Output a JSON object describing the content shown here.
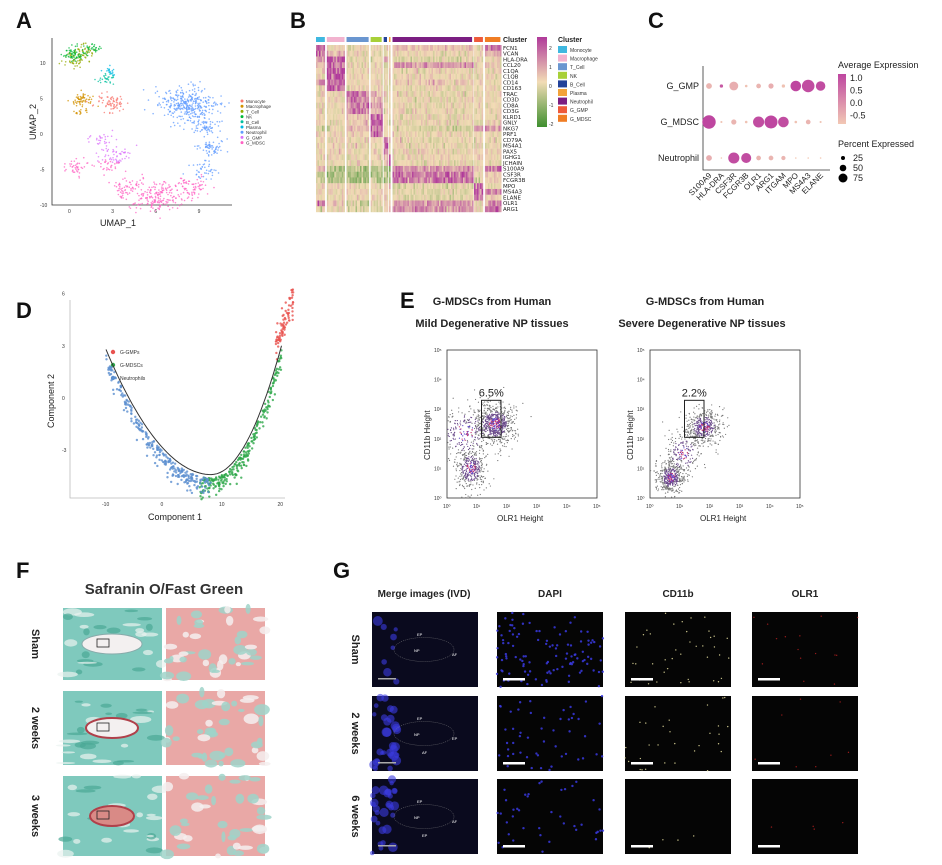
{
  "panels": {
    "a": "A",
    "b": "B",
    "c": "C",
    "d": "D",
    "e": "E",
    "f": "F",
    "g": "G"
  },
  "chart_data": [
    {
      "panel": "A",
      "type": "scatter",
      "xlabel": "UMAP_1",
      "ylabel": "UMAP_2",
      "xticks": [
        0,
        3,
        6,
        9
      ],
      "yticks": [
        -10,
        -5,
        0,
        5,
        10
      ],
      "xlim": [
        -1,
        11
      ],
      "ylim": [
        -10.5,
        13
      ],
      "legend": [
        "Monocyte",
        "Macrophage",
        "T_Cell",
        "NK",
        "B_Cell",
        "Plasma",
        "Neutrophil",
        "G_GMP",
        "G_MDSC"
      ],
      "legend_position": "right",
      "clusters": [
        {
          "name": "Monocyte",
          "color": "#F8766D",
          "blobs": [
            [
              3,
              4,
              0.5,
              50
            ],
            [
              2.2,
              4.5,
              0.5,
              20
            ]
          ]
        },
        {
          "name": "Macrophage",
          "color": "#D39200",
          "blobs": [
            [
              0.8,
              4.9,
              0.4,
              60
            ],
            [
              0.8,
              3.2,
              0.3,
              15
            ]
          ]
        },
        {
          "name": "T_Cell",
          "color": "#93AA00",
          "blobs": [
            [
              0.3,
              10.5,
              0.4,
              60
            ],
            [
              1,
              11.8,
              0.4,
              40
            ]
          ]
        },
        {
          "name": "NK",
          "color": "#00BA38",
          "blobs": [
            [
              0.2,
              11.3,
              0.35,
              60
            ],
            [
              1.5,
              12,
              0.3,
              30
            ]
          ]
        },
        {
          "name": "B_Cell",
          "color": "#00C19F",
          "blobs": [
            [
              2.6,
              7.9,
              0.3,
              30
            ]
          ]
        },
        {
          "name": "Plasma",
          "color": "#00B9E3",
          "blobs": [
            [
              2.8,
              8.7,
              0.25,
              20
            ]
          ]
        },
        {
          "name": "Neutrophil",
          "color": "#619CFF",
          "blobs": [
            [
              8.2,
              4,
              1,
              350
            ],
            [
              9.5,
              1,
              0.5,
              60
            ],
            [
              9.8,
              -2,
              0.5,
              60
            ],
            [
              9.3,
              -5,
              0.5,
              40
            ]
          ]
        },
        {
          "name": "G_GMP",
          "color": "#DB72FB",
          "blobs": [
            [
              3,
              -3,
              0.6,
              50
            ],
            [
              2.2,
              -1,
              0.6,
              30
            ]
          ]
        },
        {
          "name": "G_MDSC",
          "color": "#FF61C3",
          "blobs": [
            [
              6,
              -8.8,
              0.9,
              180
            ],
            [
              4,
              -7.5,
              0.6,
              60
            ],
            [
              8.5,
              -7.5,
              0.6,
              70
            ],
            [
              0.4,
              -4.5,
              0.4,
              40
            ],
            [
              2.7,
              -4.5,
              0.4,
              30
            ]
          ]
        }
      ]
    },
    {
      "panel": "B",
      "type": "heatmap",
      "legend_title": "Cluster",
      "colorbar_ticks": [
        2,
        1,
        0,
        -1,
        -2
      ],
      "clusters": [
        "Monocyte",
        "Macrophage",
        "T_Cell",
        "NK",
        "B_Cell",
        "Plasma",
        "Neutrophil",
        "G_GMP",
        "G_MDSC"
      ],
      "cluster_colors": [
        "#3FB8E0",
        "#F2B3CF",
        "#6A96D0",
        "#A8D038",
        "#23429A",
        "#F2A23A",
        "#7B1E82",
        "#EE5A3A",
        "#F07D24"
      ],
      "cluster_cell_share": [
        8,
        16,
        20,
        10,
        3,
        1,
        72,
        8,
        14
      ],
      "genes": [
        "FCN1",
        "VCAN",
        "HLA-DRA",
        "CCL20",
        "C1QA",
        "C1QB",
        "CD14",
        "CD163",
        "TRAC",
        "CD3D",
        "CD8A",
        "CD3G",
        "KLRD1",
        "GNLY",
        "NKG7",
        "PRF1",
        "CD79A",
        "MS4A1",
        "PAX5",
        "IGHG1",
        "JCHAIN",
        "S100A9",
        "CSF3R",
        "FCGR3B",
        "MPO",
        "MS4A3",
        "ELANE",
        "OLR1",
        "ARG1"
      ],
      "z": [
        [
          1.5,
          0,
          0,
          0,
          0,
          0,
          0.3,
          0,
          1.2
        ],
        [
          1.5,
          0.5,
          0,
          0,
          0,
          0,
          0,
          0,
          0.5
        ],
        [
          1,
          1.8,
          0,
          0,
          1.5,
          0,
          -0.3,
          0,
          0
        ],
        [
          0.5,
          1.5,
          0,
          0,
          0,
          0,
          1,
          0,
          0.3
        ],
        [
          0,
          2,
          0,
          0,
          0,
          0,
          0,
          0,
          0
        ],
        [
          0,
          2,
          0,
          0,
          0,
          0,
          0,
          0,
          0
        ],
        [
          1,
          1.8,
          0,
          0,
          0,
          0,
          0.2,
          0,
          0
        ],
        [
          0,
          1.8,
          0,
          0,
          0,
          0,
          0,
          0,
          0
        ],
        [
          0,
          0,
          1.5,
          0.5,
          0,
          0,
          0,
          0,
          0
        ],
        [
          0,
          0,
          1.5,
          0.5,
          0,
          0,
          0,
          0,
          0
        ],
        [
          0,
          0,
          1.2,
          0.8,
          0,
          0,
          0,
          0,
          0
        ],
        [
          0,
          0,
          1.2,
          0.5,
          0,
          0,
          0,
          0,
          0
        ],
        [
          0,
          0,
          0.3,
          1.8,
          0,
          0,
          0,
          0,
          0
        ],
        [
          0,
          0,
          0.3,
          1.8,
          0,
          0,
          0,
          0,
          0
        ],
        [
          -0.3,
          -0.3,
          0.3,
          1.5,
          0,
          0,
          -0.3,
          1,
          1
        ],
        [
          0,
          0,
          0.2,
          1.5,
          0,
          0,
          0,
          0,
          0
        ],
        [
          0,
          0,
          0,
          0,
          2,
          0.5,
          0,
          0,
          0
        ],
        [
          0,
          0,
          0,
          0,
          2,
          0,
          0,
          0,
          0
        ],
        [
          0,
          0,
          0,
          0,
          1.8,
          0,
          0,
          0,
          0
        ],
        [
          0,
          0,
          0,
          0,
          0.5,
          2,
          0,
          0,
          0
        ],
        [
          0,
          0,
          0,
          0,
          0.5,
          2,
          0,
          0,
          0
        ],
        [
          0.5,
          -0.8,
          -0.8,
          -0.8,
          -0.8,
          -0.8,
          1,
          0.3,
          1.5
        ],
        [
          -0.3,
          -0.8,
          -0.8,
          -0.8,
          -0.8,
          -0.8,
          1.5,
          0,
          0.3
        ],
        [
          -0.3,
          -0.8,
          -0.8,
          -0.8,
          -0.8,
          -0.8,
          1.5,
          0,
          0
        ],
        [
          0,
          0,
          0,
          0,
          0,
          0,
          -0.2,
          2,
          0
        ],
        [
          0,
          0,
          0,
          0,
          0,
          0,
          -0.2,
          2,
          1
        ],
        [
          0,
          0,
          0,
          0,
          0,
          0,
          -0.2,
          1.5,
          0
        ],
        [
          1.2,
          0.3,
          -0.3,
          -0.3,
          0,
          0,
          1,
          0,
          1.5
        ],
        [
          0,
          0,
          -0.3,
          -0.3,
          0,
          0,
          1,
          0.3,
          1.5
        ]
      ]
    },
    {
      "panel": "C",
      "type": "scatter",
      "subtype": "dotplot",
      "groups": [
        "G_GMP",
        "G_MDSC",
        "Neutrophil"
      ],
      "genes": [
        "S100A9",
        "HLA-DRA",
        "CSF3R",
        "FCGR3B",
        "OLR1",
        "ARG1",
        "ITGAM",
        "MPO",
        "MS4A3",
        "ELANE"
      ],
      "avg_expression": [
        [
          -0.6,
          0.8,
          -0.5,
          -0.8,
          -0.6,
          -0.5,
          -0.8,
          1.1,
          1.0,
          1.0
        ],
        [
          1.1,
          -0.8,
          -0.6,
          -0.8,
          1.0,
          1.1,
          1.0,
          -0.8,
          -0.6,
          -0.8
        ],
        [
          -0.5,
          -0.9,
          1.0,
          1.0,
          -0.6,
          -0.6,
          -0.6,
          -0.9,
          -0.9,
          -0.9
        ]
      ],
      "pct_expressed": [
        [
          15,
          5,
          35,
          3,
          10,
          12,
          5,
          50,
          70,
          40
        ],
        [
          80,
          2,
          12,
          3,
          55,
          75,
          50,
          3,
          10,
          2
        ],
        [
          15,
          1,
          55,
          45,
          10,
          10,
          8,
          1,
          1,
          1
        ]
      ],
      "color_legend": {
        "title": "Average Expression",
        "ticks": [
          "1.0",
          "0.5",
          "0.0",
          "-0.5"
        ]
      },
      "size_legend": {
        "title": "Percent Expressed",
        "ticks": [
          "25",
          "50",
          "75"
        ]
      }
    },
    {
      "panel": "D",
      "type": "scatter",
      "subtype": "trajectory",
      "xlabel": "Component 1",
      "ylabel": "Component 2",
      "xticks": [
        -10,
        0,
        10,
        20
      ],
      "yticks": [
        -3,
        0,
        3,
        6
      ],
      "xlim": [
        -11,
        23
      ],
      "ylim": [
        -6,
        6.3
      ],
      "legend": [
        {
          "name": "G-GMPs",
          "color": "#E8524F",
          "x_range": [
            19,
            22
          ]
        },
        {
          "name": "G-MDSCs",
          "color": "#2EA84A",
          "x_range": [
            6,
            20
          ]
        },
        {
          "name": "Neutrophils",
          "color": "#5B8FD0",
          "x_range": [
            -10,
            8
          ]
        }
      ],
      "legend_position": "top-left"
    },
    {
      "panel": "E",
      "type": "scatter",
      "subtype": "flow-cytometry",
      "plots": [
        {
          "title_line1": "G-MDSCs from Human",
          "title_line2": "Mild Degenerative NP tissues",
          "gate_label": "6.5%",
          "gate_log": [
            1.15,
            2.05,
            1.8,
            3.3
          ],
          "populations": [
            [
              0.8,
              1.0,
              0.25,
              0.35,
              350
            ],
            [
              1.6,
              2.5,
              0.35,
              0.35,
              700
            ],
            [
              0.6,
              2.2,
              0.5,
              0.5,
              250
            ]
          ]
        },
        {
          "title_line1": "G-MDSCs from Human",
          "title_line2": "Severe Degenerative NP tissues",
          "gate_label": "2.2%",
          "gate_log": [
            1.15,
            2.05,
            1.8,
            3.3
          ],
          "populations": [
            [
              0.7,
              0.7,
              0.22,
              0.28,
              450
            ],
            [
              1.8,
              2.4,
              0.3,
              0.3,
              450
            ],
            [
              1.1,
              1.5,
              0.3,
              0.4,
              200
            ]
          ]
        }
      ],
      "xlabel": "OLR1 Height",
      "ylabel": "CD11b Height",
      "ticks": [
        "10⁰",
        "10¹",
        "10²",
        "10³",
        "10⁴",
        "10⁵"
      ]
    }
  ],
  "panel_f": {
    "title": "Safranin O/Fast Green",
    "rows": [
      "Sham",
      "2 weeks",
      "3 weeks"
    ]
  },
  "panel_g": {
    "columns": [
      "Merge images (IVD)",
      "DAPI",
      "CD11b",
      "OLR1"
    ],
    "rows": [
      "Sham",
      "2 weeks",
      "6 weeks"
    ],
    "region_labels": [
      [
        "EP",
        "NP",
        "AF"
      ],
      [
        "EP",
        "NP",
        "EP",
        "AF"
      ],
      [
        "EP",
        "NP",
        "AF",
        "EP"
      ]
    ]
  }
}
